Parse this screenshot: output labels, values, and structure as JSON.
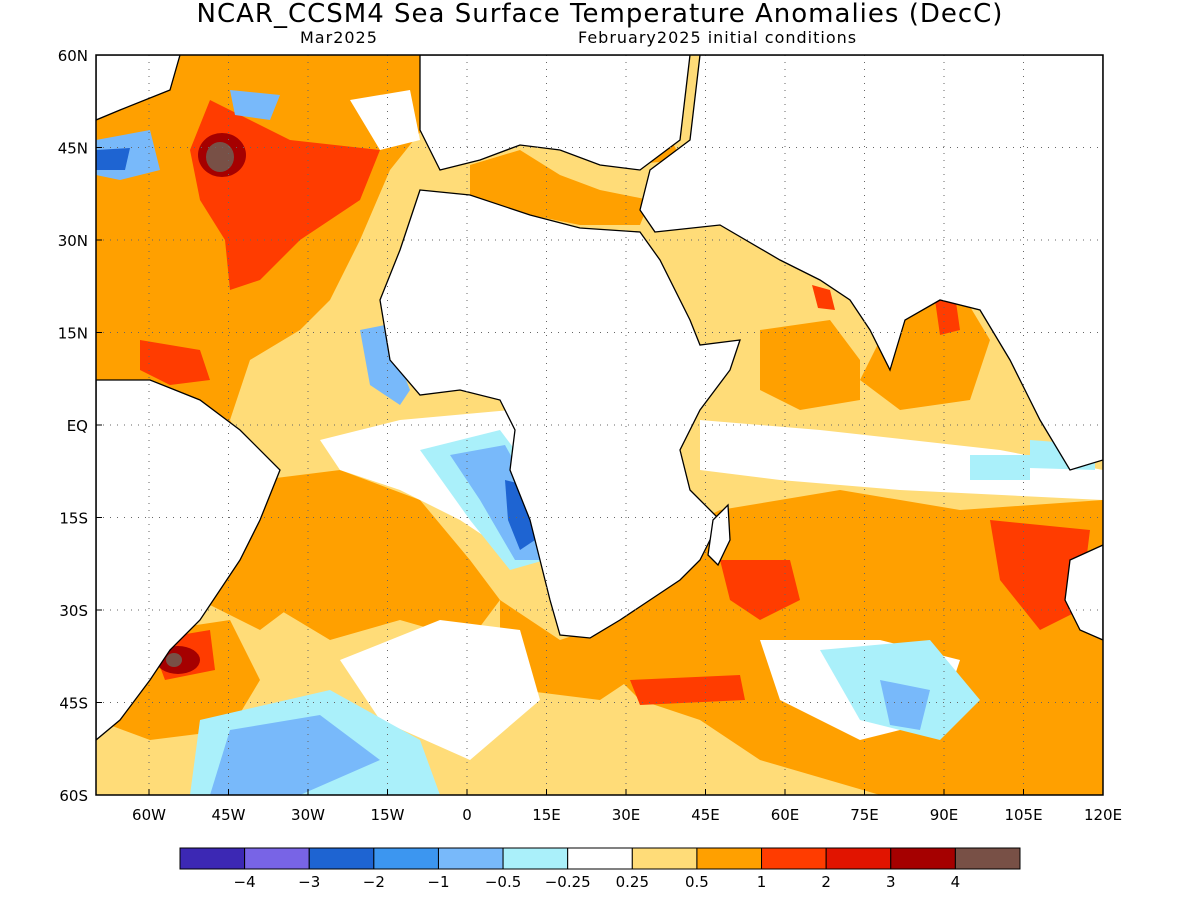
{
  "title": "NCAR_CCSM4 Sea Surface Temperature Anomalies (DecC)",
  "subtitle_left": "Mar2025",
  "subtitle_right": "February2025 initial conditions",
  "map": {
    "lon_range": [
      -70,
      120
    ],
    "lat_range": [
      -60,
      60
    ],
    "lat_ticks": [
      {
        "value": 60,
        "label": "60N"
      },
      {
        "value": 45,
        "label": "45N"
      },
      {
        "value": 30,
        "label": "30N"
      },
      {
        "value": 15,
        "label": "15N"
      },
      {
        "value": 0,
        "label": "EQ"
      },
      {
        "value": -15,
        "label": "15S"
      },
      {
        "value": -30,
        "label": "30S"
      },
      {
        "value": -45,
        "label": "45S"
      },
      {
        "value": -60,
        "label": "60S"
      }
    ],
    "lon_ticks": [
      {
        "value": -60,
        "label": "60W"
      },
      {
        "value": -45,
        "label": "45W"
      },
      {
        "value": -30,
        "label": "30W"
      },
      {
        "value": -15,
        "label": "15W"
      },
      {
        "value": 0,
        "label": "0"
      },
      {
        "value": 15,
        "label": "15E"
      },
      {
        "value": 30,
        "label": "30E"
      },
      {
        "value": 45,
        "label": "45E"
      },
      {
        "value": 60,
        "label": "60E"
      },
      {
        "value": 75,
        "label": "75E"
      },
      {
        "value": 90,
        "label": "90E"
      },
      {
        "value": 105,
        "label": "105E"
      },
      {
        "value": 120,
        "label": "120E"
      }
    ],
    "grid": "dotted",
    "colors": {
      "ocean_base": "#FFDC78",
      "land": "#FFFFFF",
      "coast": "#000000"
    }
  },
  "legend": {
    "colors": [
      "#3C28B4",
      "#7864E6",
      "#1E64D2",
      "#3C96F0",
      "#78B9FA",
      "#AAF0FA",
      "#FFFFFF",
      "#FFDC78",
      "#FFA000",
      "#FF3C00",
      "#E11400",
      "#A50000",
      "#785046"
    ],
    "labels": [
      "−4",
      "−3",
      "−2",
      "−1",
      "−0.5",
      "−0.25",
      "0.25",
      "0.5",
      "1",
      "2",
      "3",
      "4"
    ]
  }
}
